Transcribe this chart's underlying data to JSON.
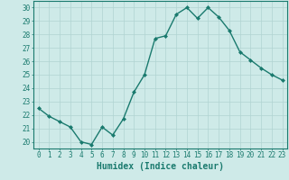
{
  "x": [
    0,
    1,
    2,
    3,
    4,
    5,
    6,
    7,
    8,
    9,
    10,
    11,
    12,
    13,
    14,
    15,
    16,
    17,
    18,
    19,
    20,
    21,
    22,
    23
  ],
  "y": [
    22.5,
    21.9,
    21.5,
    21.1,
    20.0,
    19.8,
    21.1,
    20.5,
    21.7,
    23.7,
    25.0,
    27.7,
    27.9,
    29.5,
    30.0,
    29.2,
    30.0,
    29.3,
    28.3,
    26.7,
    26.1,
    25.5,
    25.0,
    24.6
  ],
  "xlabel": "Humidex (Indice chaleur)",
  "xlim": [
    -0.5,
    23.5
  ],
  "ylim": [
    19.5,
    30.5
  ],
  "yticks": [
    20,
    21,
    22,
    23,
    24,
    25,
    26,
    27,
    28,
    29,
    30
  ],
  "xticks": [
    0,
    1,
    2,
    3,
    4,
    5,
    6,
    7,
    8,
    9,
    10,
    11,
    12,
    13,
    14,
    15,
    16,
    17,
    18,
    19,
    20,
    21,
    22,
    23
  ],
  "line_color": "#1a7a6e",
  "marker": "D",
  "marker_size": 2.0,
  "bg_color": "#ceeae8",
  "grid_color": "#b0d4d2",
  "axis_color": "#1a7a6e",
  "label_color": "#1a7a6e",
  "tick_color": "#1a7a6e",
  "xlabel_fontsize": 7.0,
  "tick_fontsize": 5.5,
  "line_width": 1.0
}
